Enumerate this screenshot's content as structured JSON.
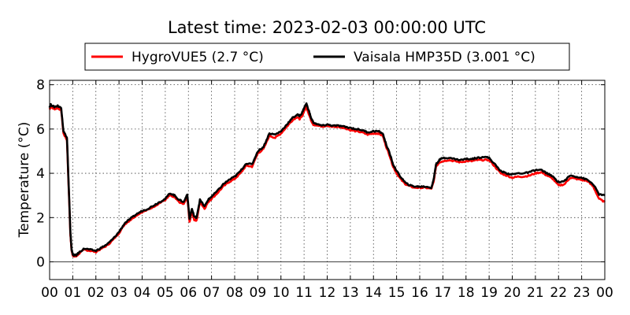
{
  "chart_data": {
    "type": "line",
    "title": "Latest time: 2023-02-03 00:00:00 UTC",
    "xlabel": "",
    "ylabel": "Temperature (°C)",
    "xlim": [
      0,
      24
    ],
    "ylim": [
      -0.8,
      8.2
    ],
    "x_tick_labels": [
      "00",
      "01",
      "02",
      "03",
      "04",
      "05",
      "06",
      "07",
      "08",
      "09",
      "10",
      "11",
      "12",
      "13",
      "14",
      "15",
      "16",
      "17",
      "18",
      "19",
      "20",
      "21",
      "22",
      "23",
      "00"
    ],
    "y_ticks": [
      0,
      2,
      4,
      6,
      8
    ],
    "grid": true,
    "legend_position": "top-center",
    "x_unit": "hour (UTC)",
    "series": [
      {
        "name": "HygroVUE5 (2.7 °C)",
        "color": "#ff0000",
        "x": [
          0,
          0.05,
          0.2,
          0.35,
          0.5,
          0.6,
          0.75,
          0.9,
          0.95,
          1.0,
          1.05,
          1.15,
          1.3,
          1.5,
          1.75,
          2.0,
          2.25,
          2.5,
          2.75,
          3.0,
          3.25,
          3.5,
          3.75,
          4.0,
          4.25,
          4.5,
          4.75,
          5.0,
          5.2,
          5.4,
          5.6,
          5.8,
          5.95,
          6.05,
          6.15,
          6.25,
          6.35,
          6.5,
          6.7,
          6.85,
          7.0,
          7.25,
          7.5,
          7.75,
          8.0,
          8.25,
          8.5,
          8.75,
          9.0,
          9.25,
          9.5,
          9.75,
          10.0,
          10.25,
          10.5,
          10.7,
          10.8,
          10.9,
          11.0,
          11.1,
          11.2,
          11.3,
          11.4,
          11.6,
          11.8,
          12.0,
          12.25,
          12.5,
          12.75,
          13.0,
          13.25,
          13.5,
          13.75,
          14.0,
          14.2,
          14.4,
          14.55,
          14.7,
          14.85,
          15.0,
          15.2,
          15.4,
          15.6,
          15.8,
          16.0,
          16.25,
          16.5,
          16.6,
          16.7,
          16.85,
          17.0,
          17.25,
          17.5,
          17.75,
          18.0,
          18.25,
          18.5,
          18.75,
          19.0,
          19.25,
          19.5,
          19.75,
          20.0,
          20.25,
          20.5,
          20.75,
          21.0,
          21.25,
          21.5,
          21.75,
          22.0,
          22.25,
          22.5,
          22.75,
          23.0,
          23.25,
          23.5,
          23.75,
          24.0
        ],
        "values": [
          6.9,
          7.0,
          6.9,
          6.95,
          6.85,
          5.8,
          5.5,
          1.2,
          0.5,
          0.3,
          0.25,
          0.25,
          0.4,
          0.55,
          0.5,
          0.45,
          0.6,
          0.75,
          1.0,
          1.3,
          1.7,
          1.9,
          2.1,
          2.25,
          2.35,
          2.5,
          2.65,
          2.8,
          3.0,
          2.9,
          2.7,
          2.6,
          2.95,
          1.8,
          2.3,
          1.9,
          1.85,
          2.7,
          2.4,
          2.7,
          2.85,
          3.1,
          3.4,
          3.6,
          3.75,
          4.0,
          4.35,
          4.3,
          4.9,
          5.1,
          5.7,
          5.6,
          5.8,
          6.1,
          6.4,
          6.55,
          6.45,
          6.55,
          6.8,
          7.0,
          6.7,
          6.4,
          6.2,
          6.15,
          6.1,
          6.15,
          6.1,
          6.1,
          6.05,
          5.95,
          5.9,
          5.85,
          5.75,
          5.8,
          5.8,
          5.7,
          5.2,
          4.8,
          4.3,
          4.0,
          3.7,
          3.5,
          3.4,
          3.35,
          3.35,
          3.35,
          3.3,
          3.6,
          4.3,
          4.5,
          4.55,
          4.6,
          4.55,
          4.5,
          4.55,
          4.55,
          4.6,
          4.6,
          4.6,
          4.3,
          4.0,
          3.9,
          3.8,
          3.85,
          3.85,
          3.9,
          4.0,
          4.05,
          3.9,
          3.75,
          3.45,
          3.5,
          3.8,
          3.75,
          3.7,
          3.65,
          3.4,
          2.85,
          2.7
        ]
      },
      {
        "name": "Vaisala HMP35D (3.001 °C)",
        "color": "#000000",
        "x": [
          0,
          0.05,
          0.2,
          0.35,
          0.5,
          0.6,
          0.75,
          0.9,
          0.95,
          1.0,
          1.05,
          1.15,
          1.3,
          1.5,
          1.75,
          2.0,
          2.25,
          2.5,
          2.75,
          3.0,
          3.25,
          3.5,
          3.75,
          4.0,
          4.25,
          4.5,
          4.75,
          5.0,
          5.2,
          5.4,
          5.6,
          5.8,
          5.95,
          6.05,
          6.15,
          6.25,
          6.35,
          6.5,
          6.7,
          6.85,
          7.0,
          7.25,
          7.5,
          7.75,
          8.0,
          8.25,
          8.5,
          8.75,
          9.0,
          9.25,
          9.5,
          9.75,
          10.0,
          10.25,
          10.5,
          10.7,
          10.8,
          10.9,
          11.0,
          11.1,
          11.2,
          11.3,
          11.4,
          11.6,
          11.8,
          12.0,
          12.25,
          12.5,
          12.75,
          13.0,
          13.25,
          13.5,
          13.75,
          14.0,
          14.2,
          14.4,
          14.55,
          14.7,
          14.85,
          15.0,
          15.2,
          15.4,
          15.6,
          15.8,
          16.0,
          16.25,
          16.5,
          16.6,
          16.7,
          16.85,
          17.0,
          17.25,
          17.5,
          17.75,
          18.0,
          18.25,
          18.5,
          18.75,
          19.0,
          19.25,
          19.5,
          19.75,
          20.0,
          20.25,
          20.5,
          20.75,
          21.0,
          21.25,
          21.5,
          21.75,
          22.0,
          22.25,
          22.5,
          22.75,
          23.0,
          23.25,
          23.5,
          23.75,
          24.0
        ],
        "values": [
          7.0,
          7.1,
          7.0,
          7.05,
          6.95,
          5.9,
          5.6,
          1.3,
          0.55,
          0.35,
          0.3,
          0.3,
          0.45,
          0.6,
          0.55,
          0.5,
          0.65,
          0.8,
          1.05,
          1.35,
          1.75,
          1.95,
          2.15,
          2.3,
          2.4,
          2.55,
          2.7,
          2.85,
          3.1,
          3.0,
          2.8,
          2.7,
          3.05,
          1.95,
          2.4,
          2.05,
          2.0,
          2.8,
          2.5,
          2.8,
          2.95,
          3.2,
          3.5,
          3.7,
          3.85,
          4.1,
          4.45,
          4.4,
          5.0,
          5.2,
          5.8,
          5.75,
          5.9,
          6.2,
          6.5,
          6.65,
          6.6,
          6.7,
          6.95,
          7.15,
          6.85,
          6.5,
          6.3,
          6.2,
          6.15,
          6.2,
          6.15,
          6.15,
          6.1,
          6.05,
          6.0,
          5.95,
          5.85,
          5.9,
          5.9,
          5.8,
          5.3,
          4.9,
          4.4,
          4.1,
          3.8,
          3.55,
          3.45,
          3.4,
          3.4,
          3.4,
          3.35,
          3.7,
          4.4,
          4.6,
          4.7,
          4.7,
          4.65,
          4.6,
          4.65,
          4.65,
          4.7,
          4.75,
          4.7,
          4.4,
          4.1,
          4.0,
          3.95,
          4.0,
          4.0,
          4.05,
          4.15,
          4.15,
          4.0,
          3.85,
          3.6,
          3.65,
          3.9,
          3.85,
          3.8,
          3.7,
          3.5,
          3.05,
          3.0
        ]
      }
    ]
  }
}
